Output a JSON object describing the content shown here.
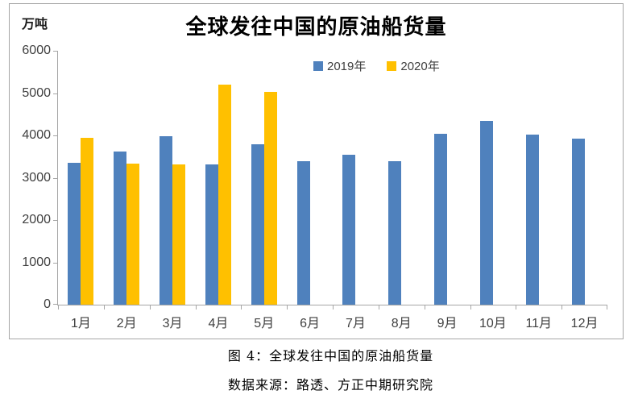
{
  "chart": {
    "unit_label": "万吨",
    "title": "全球发往中国的原油船货量"
  },
  "caption": {
    "line1": "图 4：全球发往中国的原油船货量",
    "line2": "数据来源：路透、方正中期研究院"
  },
  "colors": {
    "axis": "#A6A6A6",
    "text": "#404040",
    "series_2019": "#4F81BD",
    "series_2020": "#FFC000"
  },
  "chart_data": {
    "type": "bar",
    "title": "全球发往中国的原油船货量",
    "ylabel": "万吨",
    "xlabel": "",
    "categories": [
      "1月",
      "2月",
      "3月",
      "4月",
      "5月",
      "6月",
      "7月",
      "8月",
      "9月",
      "10月",
      "11月",
      "12月"
    ],
    "series": [
      {
        "name": "2019年",
        "color": "#4F81BD",
        "values": [
          3350,
          3610,
          3980,
          3310,
          3790,
          3400,
          3540,
          3390,
          4030,
          4340,
          4020,
          3930
        ]
      },
      {
        "name": "2020年",
        "color": "#FFC000",
        "values": [
          3940,
          3330,
          3310,
          5200,
          5020,
          null,
          null,
          null,
          null,
          null,
          null,
          null
        ]
      }
    ],
    "ylim": [
      0,
      6000
    ],
    "y_ticks": [
      0,
      1000,
      2000,
      3000,
      4000,
      5000,
      6000
    ],
    "grid": false,
    "legend_position": "top-center"
  }
}
